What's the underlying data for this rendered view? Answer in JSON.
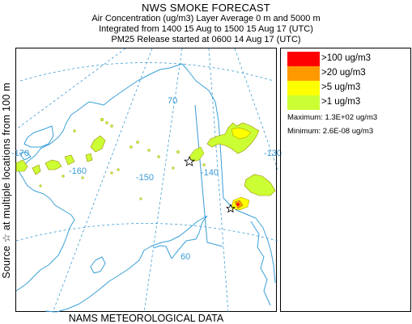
{
  "header": {
    "title": "NWS SMOKE FORECAST",
    "line1": "Air Concentration (ug/m3) Layer Average    0 m and  5000 m",
    "line2": "Integrated from 1400 15 Aug to 1500 15 Aug 17 (UTC)",
    "line3": "PM25 Release started at 0600 14 Aug 17 (UTC)"
  },
  "side_label": "Source ☆   at multiple locations   from   100 m",
  "bottom_label": "NAMS METEOROLOGICAL DATA",
  "map": {
    "grid_labels": {
      "lat70": "70",
      "lat60": "60",
      "lon170": "-170",
      "lon160": "-160",
      "lon150": "-150",
      "lon140": "-140",
      "lon130": "-130"
    },
    "source_marker": "☆",
    "colors": {
      "coast": "#3aa0d8",
      "grid": "#3a9ad3",
      "border": "#3a9ad3",
      "plume_light": "#ccff33",
      "plume_yellow": "#ffff00",
      "plume_orange": "#ff9900",
      "plume_red": "#ff0000"
    }
  },
  "legend": {
    "items": [
      {
        "label": ">100 ug/m3",
        "color": "#ff0000"
      },
      {
        "label": ">20 ug/m3",
        "color": "#ff9900"
      },
      {
        "label": ">5 ug/m3",
        "color": "#ffff00"
      },
      {
        "label": ">1 ug/m3",
        "color": "#ccff33"
      }
    ],
    "maximum": "Maximum: 1.3E+02 ug/m3",
    "minimum": "Minimum: 2.6E-08 ug/m3"
  }
}
